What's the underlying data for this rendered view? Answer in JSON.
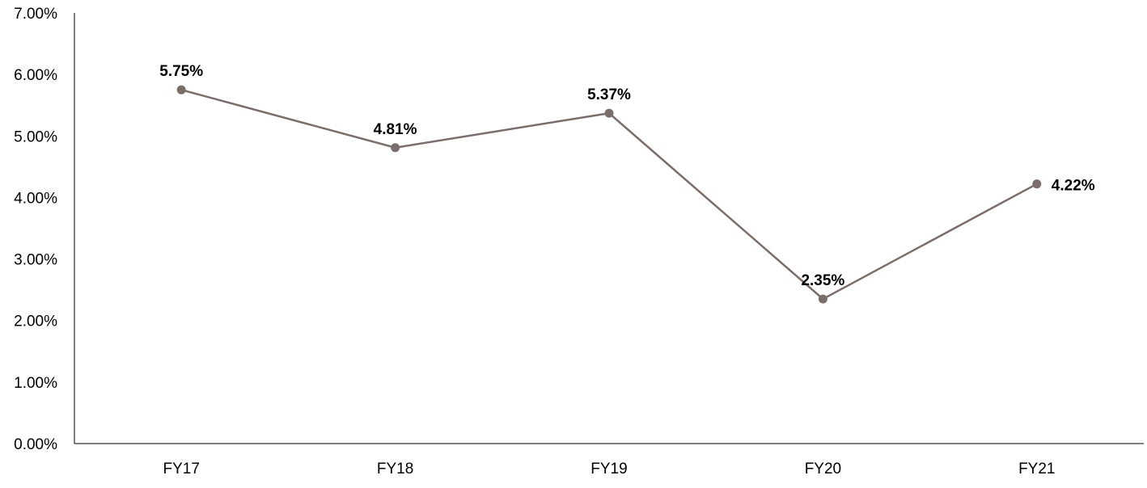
{
  "colors": {
    "series": "#7a6e6b",
    "axis": "#000000",
    "text": "#000000"
  },
  "chart_data": {
    "type": "line",
    "title": "",
    "xlabel": "",
    "ylabel": "",
    "categories": [
      "FY17",
      "FY18",
      "FY19",
      "FY20",
      "FY21"
    ],
    "series": [
      {
        "values": [
          5.75,
          4.81,
          5.37,
          2.35,
          4.22
        ],
        "labels": [
          "5.75%",
          "4.81%",
          "5.37%",
          "2.35%",
          "4.22%"
        ]
      }
    ],
    "y_ticks": [
      "0.00%",
      "1.00%",
      "2.00%",
      "3.00%",
      "4.00%",
      "5.00%",
      "6.00%",
      "7.00%"
    ],
    "ylim": [
      0,
      7
    ],
    "grid": false,
    "legend": "none"
  }
}
